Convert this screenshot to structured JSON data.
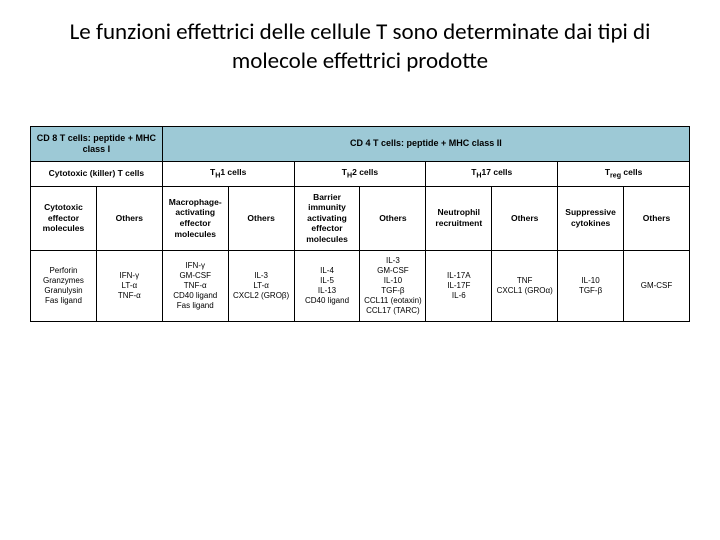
{
  "title": "Le funzioni effettrici delle cellule T sono determinate dai tipi di molecole effettrici prodotte",
  "colors": {
    "header_bg": "#9dc9d6",
    "border": "#000000",
    "bg": "#ffffff",
    "text": "#000000"
  },
  "top_headers": {
    "cd8": "CD 8 T cells: peptide + MHC class I",
    "cd4": "CD 4 T cells: peptide + MHC class II"
  },
  "cell_types": {
    "ctl": "Cytotoxic (killer) T cells",
    "th1_pre": "T",
    "th1_sub": "H",
    "th1_post": "1 cells",
    "th2_pre": "T",
    "th2_sub": "H",
    "th2_post": "2 cells",
    "th17_pre": "T",
    "th17_sub": "H",
    "th17_post": "17 cells",
    "treg_pre": "T",
    "treg_sub": "reg",
    "treg_post": " cells"
  },
  "categories": {
    "ctl_cat": "Cytotoxic effector molecules",
    "ctl_oth": "Others",
    "th1_cat": "Macrophage-activating effector molecules",
    "th1_oth": "Others",
    "th2_cat": "Barrier immunity activating effector molecules",
    "th2_oth": "Others",
    "th17_cat": "Neutrophil recruitment",
    "th17_oth": "Others",
    "treg_cat": "Suppressive cytokines",
    "treg_oth": "Others"
  },
  "data": {
    "ctl_mol": "Perforin\nGranzymes\nGranulysin\nFas ligand",
    "ctl_oth": "IFN-γ\nLT-α\nTNF-α",
    "th1_mol": "IFN-γ\nGM-CSF\nTNF-α\nCD40 ligand\nFas ligand",
    "th1_oth": "IL-3\nLT-α\nCXCL2 (GROβ)",
    "th2_mol": "IL-4\nIL-5\nIL-13\nCD40 ligand",
    "th2_oth": "IL-3\nGM-CSF\nIL-10\nTGF-β\nCCL11 (eotaxin)\nCCL17 (TARC)",
    "th17_mol": "IL-17A\nIL-17F\nIL-6",
    "th17_oth": "TNF\nCXCL1 (GROα)",
    "treg_mol": "IL-10\nTGF-β",
    "treg_oth": "GM-CSF"
  }
}
